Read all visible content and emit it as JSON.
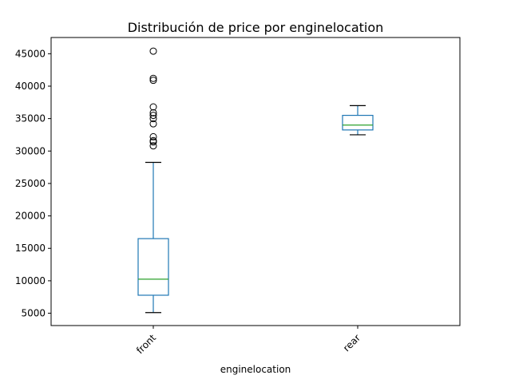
{
  "chart_data": {
    "type": "boxplot",
    "title": "Distribución de price por enginelocation",
    "xlabel": "enginelocation",
    "ylabel": "",
    "categories": [
      "front",
      "rear"
    ],
    "y_ticks": [
      5000,
      10000,
      15000,
      20000,
      25000,
      30000,
      35000,
      40000,
      45000
    ],
    "ylim": [
      3100,
      47500
    ],
    "grid": false,
    "box_color": "#1f77b4",
    "median_color": "#2ca02c",
    "boxes": [
      {
        "category": "front",
        "whisker_low": 5100,
        "q1": 7775,
        "median": 10250,
        "q3": 16500,
        "whisker_high": 28250,
        "outliers": [
          30800,
          31400,
          31600,
          32200,
          34200,
          35000,
          35500,
          35900,
          36800,
          40900,
          41200,
          45400
        ]
      },
      {
        "category": "rear",
        "whisker_low": 32500,
        "q1": 33250,
        "median": 34000,
        "q3": 35500,
        "whisker_high": 37000,
        "outliers": []
      }
    ]
  }
}
